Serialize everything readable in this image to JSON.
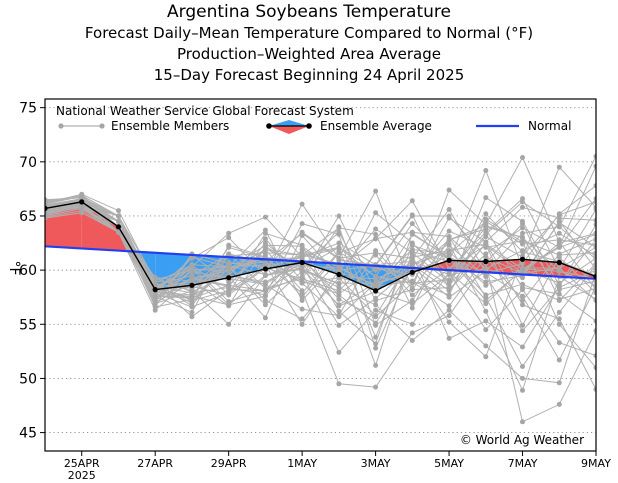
{
  "header": {
    "title": "Argentina Soybeans Temperature",
    "subtitle1": "Forecast Daily–Mean Temperature Compared to Normal (°F)",
    "subtitle2": "Production–Weighted Area Average",
    "subtitle3": "15–Day Forecast Beginning 24 April 2025"
  },
  "legend": {
    "source": "National Weather Service Global Forecast System",
    "members": "Ensemble Members",
    "average": "Ensemble Average",
    "normal": "Normal"
  },
  "copyright": "© World Ag Weather",
  "colors": {
    "above": "#f0595c",
    "below": "#3a9ef2",
    "normal": "#2340f0",
    "members": "#b0b0b0",
    "member_dots": "#a6a6a6",
    "average": "#000000"
  },
  "chart_data": {
    "type": "line",
    "title": "Argentina Soybeans Temperature",
    "ylabel": "°F",
    "ylim": [
      43.3,
      75.8
    ],
    "yticks": [
      45,
      50,
      55,
      60,
      65,
      70,
      75
    ],
    "grid": "horizontal dotted",
    "x_days": [
      0,
      1,
      2,
      3,
      4,
      5,
      6,
      7,
      8,
      9,
      10,
      11,
      12,
      13,
      14,
      15
    ],
    "xlim": [
      0,
      15
    ],
    "xticks": [
      {
        "day": 1,
        "label": "25APR",
        "label2": "2025"
      },
      {
        "day": 3,
        "label": "27APR"
      },
      {
        "day": 5,
        "label": "29APR"
      },
      {
        "day": 7,
        "label": "1MAY"
      },
      {
        "day": 9,
        "label": "3MAY"
      },
      {
        "day": 11,
        "label": "5MAY"
      },
      {
        "day": 13,
        "label": "7MAY"
      },
      {
        "day": 15,
        "label": "9MAY"
      }
    ],
    "normal": {
      "start": 62.2,
      "end": 59.2
    },
    "ensemble_average": [
      65.7,
      66.3,
      64.0,
      58.2,
      58.6,
      59.3,
      60.1,
      60.7,
      59.6,
      58.1,
      59.8,
      60.9,
      60.8,
      61.0,
      60.7,
      59.4
    ],
    "ensemble_members": [
      [
        65.7,
        66.5,
        64.5,
        57.4,
        60.0,
        60.0,
        61.9,
        61.4,
        62.1,
        60.0,
        60.5,
        61.7,
        58.6,
        60.1,
        59.9,
        59.2
      ],
      [
        65.0,
        65.7,
        64.0,
        59.3,
        58.0,
        59.5,
        58.9,
        60.6,
        56.7,
        58.0,
        56.9,
        59.6,
        60.1,
        61.8,
        63.4,
        61.3
      ],
      [
        66.2,
        67.0,
        65.5,
        58.9,
        55.7,
        58.2,
        58.1,
        61.9,
        60.3,
        58.1,
        63.3,
        61.2,
        59.7,
        60.6,
        65.2,
        67.8
      ],
      [
        66.5,
        66.7,
        64.5,
        58.1,
        60.5,
        60.3,
        56.8,
        59.9,
        58.8,
        58.8,
        61.9,
        61.5,
        64.5,
        62.4,
        62.8,
        62.3
      ],
      [
        64.8,
        65.3,
        63.5,
        57.1,
        61.4,
        58.9,
        62.0,
        60.3,
        63.5,
        57.2,
        58.2,
        58.4,
        66.7,
        64.5,
        58.6,
        62.8
      ],
      [
        65.9,
        66.2,
        64.5,
        58.0,
        57.4,
        62.1,
        61.1,
        58.8,
        59.3,
        58.5,
        60.8,
        59.6,
        64.0,
        63.0,
        59.9,
        58.6
      ],
      [
        65.5,
        66.4,
        65.0,
        59.1,
        60.0,
        60.3,
        63.7,
        57.2,
        60.9,
        60.5,
        60.8,
        58.6,
        62.4,
        60.1,
        58.8,
        61.1
      ],
      [
        66.3,
        66.9,
        64.0,
        56.6,
        57.3,
        60.1,
        61.1,
        61.1,
        57.3,
        55.7,
        58.8,
        64.8,
        62.6,
        65.8,
        64.8,
        64.6
      ],
      [
        65.1,
        65.9,
        63.5,
        56.3,
        59.3,
        59.6,
        58.7,
        56.4,
        55.8,
        61.8,
        58.3,
        67.4,
        64.2,
        70.4,
        62.6,
        58.2
      ],
      [
        65.8,
        66.6,
        65.0,
        58.3,
        60.1,
        56.8,
        59.5,
        60.7,
        59.9,
        63.8,
        61.6,
        58.9,
        63.1,
        61.2,
        69.5,
        65.8
      ],
      [
        64.9,
        65.5,
        63.5,
        57.9,
        56.6,
        57.9,
        60.3,
        61.2,
        62.0,
        53.8,
        62.3,
        61.1,
        57.2,
        60.0,
        62.1,
        63.3
      ],
      [
        66.0,
        66.5,
        64.5,
        59.0,
        58.6,
        59.5,
        62.9,
        59.0,
        57.8,
        60.2,
        59.6,
        63.6,
        62.1,
        62.7,
        61.4,
        61.6
      ],
      [
        65.6,
        66.2,
        65.0,
        57.2,
        61.2,
        60.3,
        60.5,
        55.0,
        60.0,
        60.4,
        65.0,
        65.0,
        61.2,
        59.7,
        60.2,
        57.2
      ],
      [
        66.4,
        66.8,
        64.5,
        58.5,
        57.9,
        58.4,
        57.7,
        64.3,
        63.3,
        52.8,
        60.5,
        62.4,
        56.2,
        48.9,
        59.4,
        57.3
      ],
      [
        65.2,
        65.8,
        63.5,
        57.6,
        56.1,
        62.3,
        61.2,
        60.4,
        54.9,
        57.4,
        60.3,
        57.5,
        59.9,
        63.4,
        64.0,
        61.0
      ],
      [
        65.8,
        66.5,
        64.5,
        58.6,
        59.5,
        61.5,
        58.3,
        59.2,
        58.1,
        61.4,
        57.7,
        60.1,
        62.3,
        59.7,
        62.5,
        63.4
      ],
      [
        65.4,
        66.0,
        65.0,
        56.9,
        58.1,
        55.0,
        59.5,
        60.2,
        62.1,
        59.4,
        58.8,
        59.1,
        63.3,
        66.3,
        64.0,
        70.5
      ],
      [
        66.1,
        66.9,
        64.0,
        58.8,
        60.5,
        57.8,
        63.4,
        62.3,
        56.2,
        53.2,
        63.4,
        61.1,
        58.9,
        59.5,
        64.4,
        62.1
      ],
      [
        65.3,
        65.8,
        64.5,
        58.2,
        57.5,
        60.1,
        62.3,
        62.2,
        59.8,
        58.7,
        59.8,
        62.8,
        63.8,
        58.4,
        57.8,
        55.3
      ],
      [
        66.0,
        66.6,
        64.5,
        57.0,
        58.8,
        59.4,
        55.6,
        63.2,
        59.4,
        59.2,
        60.5,
        58.1,
        62.5,
        56.8,
        55.5,
        49.0
      ],
      [
        65.9,
        66.4,
        64.0,
        57.6,
        57.4,
        58.6,
        58.1,
        59.4,
        65.0,
        58.0,
        62.4,
        59.8,
        56.9,
        60.1,
        62.2,
        69.6
      ],
      [
        65.0,
        65.7,
        63.5,
        58.6,
        58.4,
        60.4,
        59.6,
        66.1,
        61.1,
        67.3,
        58.2,
        62.8,
        64.1,
        63.0,
        58.2,
        59.0
      ],
      [
        66.2,
        66.9,
        65.0,
        58.4,
        60.3,
        63.4,
        64.9,
        61.2,
        62.5,
        60.5,
        65.1,
        58.2,
        61.5,
        63.9,
        62.1,
        66.6
      ],
      [
        65.5,
        66.3,
        64.0,
        57.7,
        58.5,
        57.7,
        60.2,
        63.5,
        61.1,
        61.6,
        61.1,
        65.6,
        59.8,
        57.6,
        51.7,
        58.5
      ],
      [
        65.3,
        66.0,
        63.5,
        59.3,
        59.0,
        56.7,
        62.2,
        60.1,
        56.8,
        58.8,
        59.8,
        61.3,
        57.7,
        58.7,
        57.2,
        60.6
      ],
      [
        66.3,
        66.8,
        64.5,
        58.1,
        61.1,
        63.0,
        59.5,
        60.1,
        58.7,
        65.3,
        62.5,
        59.0,
        65.2,
        61.7,
        60.8,
        59.5
      ],
      [
        65.7,
        66.3,
        64.0,
        57.2,
        59.3,
        59.9,
        61.4,
        57.5,
        61.6,
        62.9,
        63.5,
        63.1,
        60.1,
        59.3,
        64.5,
        60.1
      ],
      [
        65.1,
        65.9,
        63.5,
        58.9,
        56.7,
        61.3,
        61.6,
        61.4,
        60.6,
        51.2,
        61.7,
        60.8,
        69.2,
        60.2,
        60.2,
        62.1
      ],
      [
        66.4,
        66.7,
        65.0,
        56.7,
        61.5,
        60.6,
        60.7,
        58.8,
        55.7,
        58.8,
        61.4,
        53.7,
        55.3,
        52.9,
        58.5,
        64.2
      ],
      [
        65.6,
        66.1,
        64.5,
        58.3,
        57.0,
        60.7,
        60.2,
        61.4,
        63.9,
        63.3,
        56.5,
        63.1,
        57.5,
        51.1,
        56.1,
        60.5
      ],
      [
        66.1,
        66.8,
        64.0,
        57.3,
        59.9,
        59.2,
        58.7,
        61.0,
        57.7,
        55.1,
        60.2,
        55.2,
        52.0,
        61.3,
        65.1,
        66.3
      ],
      [
        65.4,
        65.9,
        64.5,
        58.7,
        58.2,
        60.2,
        60.8,
        63.4,
        61.0,
        60.3,
        58.9,
        56.7,
        61.2,
        57.2,
        61.5,
        62.9
      ],
      [
        65.8,
        66.4,
        63.5,
        57.9,
        59.2,
        58.5,
        62.5,
        59.8,
        52.4,
        56.3,
        55.0,
        59.8,
        54.5,
        58.2,
        53.3,
        52.1
      ],
      [
        65.2,
        66.2,
        65.0,
        58.0,
        57.7,
        61.4,
        60.2,
        59.2,
        64.0,
        54.9,
        57.2,
        62.3,
        59.4,
        54.4,
        58.4,
        60.0
      ],
      [
        66.0,
        66.5,
        64.5,
        57.4,
        60.3,
        57.1,
        58.1,
        60.4,
        60.2,
        62.9,
        66.4,
        60.1,
        63.5,
        66.6,
        60.1,
        65.6
      ],
      [
        65.5,
        66.1,
        64.0,
        58.4,
        58.9,
        60.4,
        57.2,
        55.5,
        59.3,
        55.8,
        61.2,
        61.8,
        62.4,
        54.9,
        61.2,
        57.9
      ],
      [
        65.9,
        66.6,
        63.5,
        56.9,
        59.3,
        58.6,
        61.9,
        58.1,
        49.5,
        49.2,
        54.2,
        55.8,
        60.6,
        46.0,
        47.6,
        54.4
      ],
      [
        65.3,
        65.8,
        64.5,
        58.2,
        58.5,
        61.5,
        60.7,
        60.1,
        58.4,
        56.8,
        53.5,
        56.3,
        53.0,
        50.0,
        49.6,
        59.8
      ],
      [
        66.2,
        66.9,
        65.0,
        57.6,
        57.6,
        56.8,
        57.6,
        61.6,
        60.3,
        58.5,
        59.0,
        57.7,
        64.7,
        62.6,
        55.0,
        51.0
      ],
      [
        65.6,
        66.3,
        64.0,
        58.6,
        57.2,
        58.1,
        60.5,
        57.9,
        61.7,
        59.4,
        64.3,
        60.9,
        60.7,
        64.3,
        57.3,
        58.3
      ]
    ]
  }
}
